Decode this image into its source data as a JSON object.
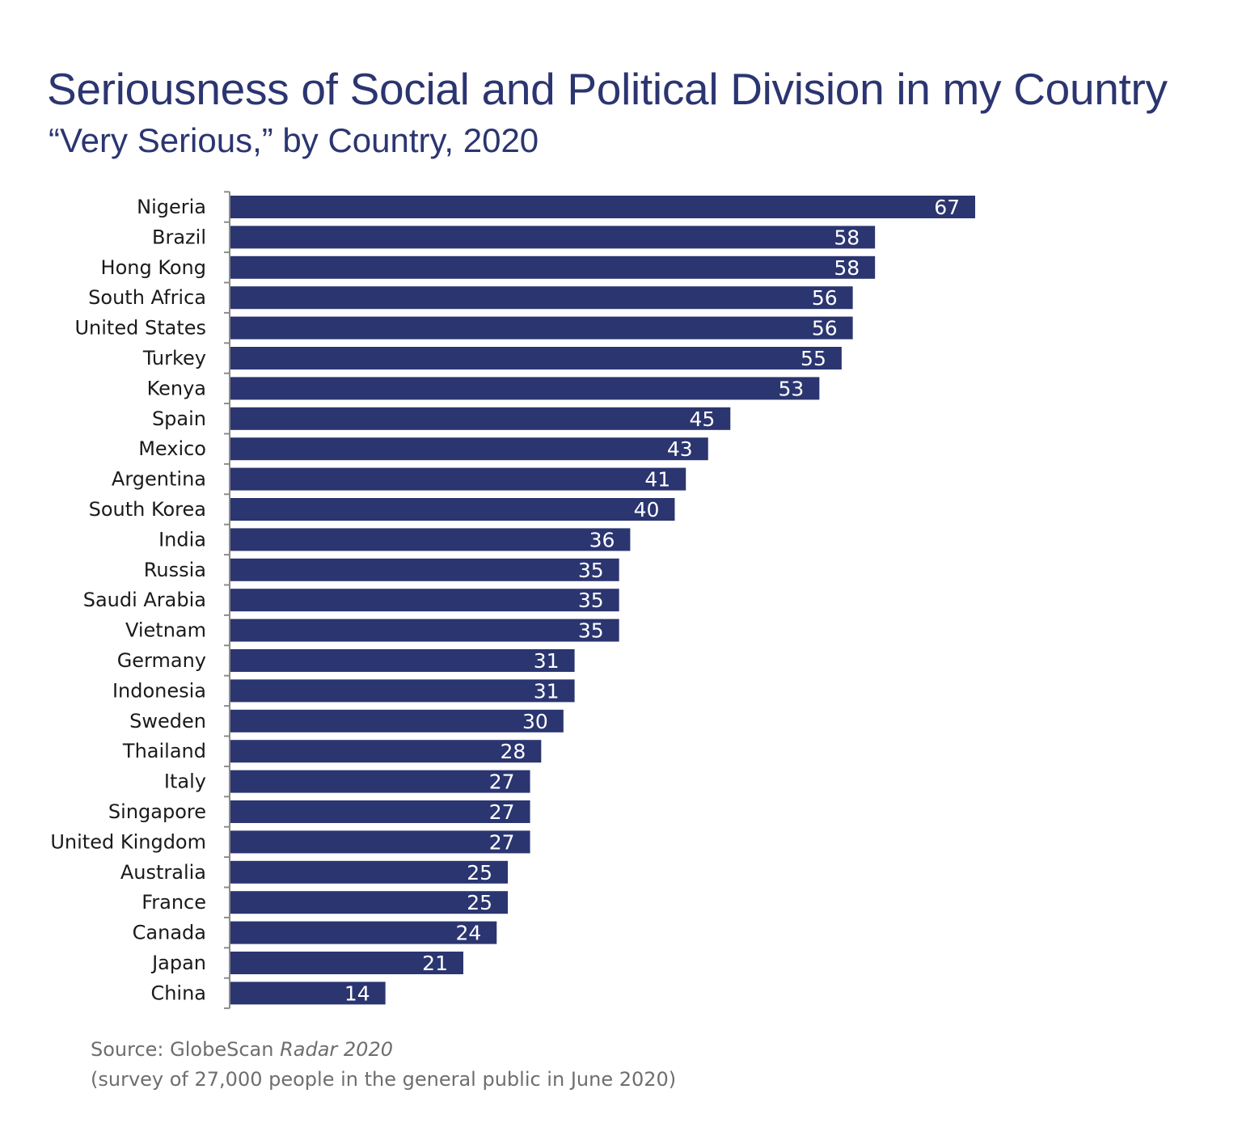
{
  "chart_data": {
    "type": "bar",
    "orientation": "horizontal",
    "title": "Seriousness of Social and Political Division in my Country",
    "subtitle": "“Very Serious,” by Country, 2020",
    "categories": [
      "Nigeria",
      "Brazil",
      "Hong Kong",
      "South Africa",
      "United States",
      "Turkey",
      "Kenya",
      "Spain",
      "Mexico",
      "Argentina",
      "South Korea",
      "India",
      "Russia",
      "Saudi Arabia",
      "Vietnam",
      "Germany",
      "Indonesia",
      "Sweden",
      "Thailand",
      "Italy",
      "Singapore",
      "United Kingdom",
      "Australia",
      "France",
      "Canada",
      "Japan",
      "China"
    ],
    "values": [
      67,
      58,
      58,
      56,
      56,
      55,
      53,
      45,
      43,
      41,
      40,
      36,
      35,
      35,
      35,
      31,
      31,
      30,
      28,
      27,
      27,
      27,
      25,
      25,
      24,
      21,
      14
    ],
    "xlim": [
      0,
      67
    ],
    "grid": false,
    "legend": "none",
    "bar_color": "#2b3570",
    "data_labels": "inside-end"
  },
  "source": {
    "prefix": "Source: GlobeScan ",
    "publication": "Radar 2020",
    "note": "(survey of 27,000 people in the general public in June 2020)"
  },
  "colors": {
    "title": "#2b3570",
    "bar": "#2b3570",
    "axis": "#8c8c8c",
    "source_text": "#6e6e6e"
  }
}
